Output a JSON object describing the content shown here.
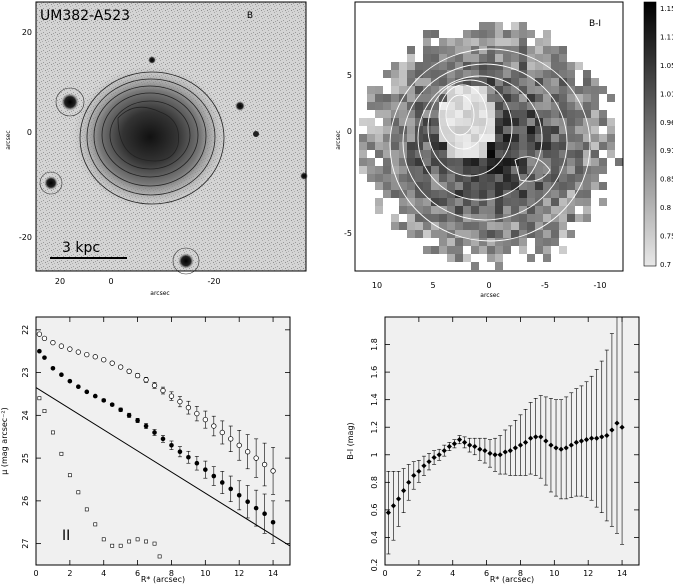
{
  "figure": {
    "panel_a": {
      "object_name": "UM382-A523",
      "band_label": "B",
      "scalebar_label": "3  kpc",
      "x_ticks": [
        "20",
        "0",
        "-20"
      ],
      "y_ticks": [
        "20",
        "0",
        "-20"
      ],
      "x_axis_label": "arcsec",
      "y_axis_label": "arcsec"
    },
    "panel_b": {
      "map_label": "B-I",
      "colorbar_ticks": [
        "1.15",
        "1.11",
        "1.05",
        "1.01",
        "0.96",
        "0.91",
        "0.85",
        "0.8",
        "0.75",
        "0.7"
      ],
      "x_ticks": [
        "10",
        "5",
        "0",
        "-5",
        "-10"
      ],
      "y_ticks": [
        "5",
        "0",
        "-5"
      ],
      "x_axis_label": "arcsec",
      "y_axis_label": "arcsec"
    },
    "panel_c_label": "II"
  },
  "chart_data": [
    {
      "type": "scatter",
      "xlabel": "R* (arcsec)",
      "ylabel": "μ (mag arcsec⁻²)",
      "xlim": [
        0,
        15
      ],
      "ylim": [
        27.5,
        21.7
      ],
      "y_inverted": true,
      "x_ticks": [
        "0",
        "2",
        "4",
        "6",
        "8",
        "10",
        "12",
        "14"
      ],
      "y_ticks": [
        "22",
        "23",
        "24",
        "25",
        "26",
        "27"
      ],
      "series": [
        {
          "marker": "open-circle",
          "x": [
            0.2,
            0.5,
            1,
            1.5,
            2,
            2.5,
            3,
            3.5,
            4,
            4.5,
            5,
            5.5,
            6,
            6.5,
            7,
            7.5,
            8,
            8.5,
            9,
            9.5,
            10,
            10.5,
            11,
            11.5,
            12,
            12.5,
            13,
            13.5,
            14
          ],
          "y": [
            22.1,
            22.2,
            22.3,
            22.38,
            22.45,
            22.52,
            22.58,
            22.63,
            22.7,
            22.78,
            22.87,
            22.97,
            23.07,
            23.17,
            23.3,
            23.42,
            23.55,
            23.68,
            23.82,
            23.96,
            24.1,
            24.25,
            24.4,
            24.55,
            24.7,
            24.85,
            25.0,
            25.15,
            25.3
          ],
          "err": [
            0.02,
            0.02,
            0.02,
            0.02,
            0.02,
            0.02,
            0.02,
            0.02,
            0.03,
            0.03,
            0.03,
            0.04,
            0.05,
            0.06,
            0.07,
            0.08,
            0.1,
            0.12,
            0.15,
            0.17,
            0.2,
            0.23,
            0.27,
            0.3,
            0.35,
            0.4,
            0.45,
            0.5,
            0.55
          ]
        },
        {
          "marker": "filled-circle",
          "x": [
            0.2,
            0.5,
            1,
            1.5,
            2,
            2.5,
            3,
            3.5,
            4,
            4.5,
            5,
            5.5,
            6,
            6.5,
            7,
            7.5,
            8,
            8.5,
            9,
            9.5,
            10,
            10.5,
            11,
            11.5,
            12,
            12.5,
            13,
            13.5,
            14
          ],
          "y": [
            22.5,
            22.65,
            22.9,
            23.05,
            23.2,
            23.33,
            23.45,
            23.55,
            23.65,
            23.75,
            23.87,
            24.0,
            24.12,
            24.25,
            24.4,
            24.55,
            24.7,
            24.85,
            24.98,
            25.12,
            25.27,
            25.42,
            25.57,
            25.72,
            25.87,
            26.02,
            26.17,
            26.3,
            26.5
          ],
          "err": [
            0.02,
            0.02,
            0.02,
            0.02,
            0.02,
            0.02,
            0.02,
            0.02,
            0.03,
            0.03,
            0.04,
            0.05,
            0.05,
            0.06,
            0.07,
            0.08,
            0.1,
            0.12,
            0.14,
            0.16,
            0.2,
            0.22,
            0.26,
            0.3,
            0.34,
            0.38,
            0.42,
            0.46,
            0.5
          ]
        },
        {
          "marker": "small-open-square",
          "x": [
            0.2,
            0.5,
            1,
            1.5,
            2,
            2.5,
            3,
            3.5,
            4,
            4.5,
            5,
            5.5,
            6,
            6.5,
            7,
            7.3
          ],
          "y": [
            23.6,
            23.9,
            24.4,
            24.9,
            25.4,
            25.8,
            26.2,
            26.55,
            26.9,
            27.05,
            27.05,
            26.95,
            26.9,
            26.95,
            27.0,
            27.3
          ]
        }
      ],
      "fit_line": {
        "x": [
          0,
          15
        ],
        "y_at_0": 23.35,
        "slope": 0.247
      }
    },
    {
      "type": "scatter",
      "xlabel": "R* (arcsec)",
      "ylabel": "B-I (mag)",
      "xlim": [
        0,
        15
      ],
      "ylim": [
        0.2,
        2.0
      ],
      "x_ticks": [
        "0",
        "2",
        "4",
        "6",
        "8",
        "10",
        "12",
        "14"
      ],
      "y_ticks": [
        "0.2",
        "0.4",
        "0.6",
        "0.8",
        "1",
        "1.2",
        "1.4",
        "1.6",
        "1.8"
      ],
      "series": [
        {
          "marker": "filled-diamond",
          "x": [
            0.2,
            0.5,
            0.8,
            1.1,
            1.4,
            1.7,
            2,
            2.3,
            2.6,
            2.9,
            3.2,
            3.5,
            3.8,
            4.1,
            4.4,
            4.7,
            5,
            5.3,
            5.6,
            5.9,
            6.2,
            6.5,
            6.8,
            7.1,
            7.4,
            7.7,
            8,
            8.3,
            8.6,
            8.9,
            9.2,
            9.5,
            9.8,
            10.1,
            10.4,
            10.7,
            11,
            11.3,
            11.6,
            11.9,
            12.2,
            12.5,
            12.8,
            13.1,
            13.4,
            13.7,
            14
          ],
          "y": [
            0.58,
            0.63,
            0.68,
            0.74,
            0.8,
            0.85,
            0.88,
            0.92,
            0.95,
            0.98,
            1.0,
            1.03,
            1.06,
            1.08,
            1.11,
            1.09,
            1.07,
            1.06,
            1.04,
            1.03,
            1.01,
            1.0,
            1.0,
            1.02,
            1.03,
            1.05,
            1.07,
            1.09,
            1.12,
            1.13,
            1.13,
            1.1,
            1.07,
            1.05,
            1.04,
            1.05,
            1.07,
            1.09,
            1.1,
            1.11,
            1.12,
            1.12,
            1.13,
            1.14,
            1.18,
            1.23,
            1.2
          ],
          "err": [
            0.3,
            0.25,
            0.2,
            0.16,
            0.13,
            0.1,
            0.08,
            0.07,
            0.06,
            0.05,
            0.04,
            0.04,
            0.03,
            0.03,
            0.03,
            0.04,
            0.05,
            0.06,
            0.08,
            0.09,
            0.1,
            0.12,
            0.14,
            0.16,
            0.18,
            0.2,
            0.22,
            0.24,
            0.26,
            0.28,
            0.3,
            0.32,
            0.34,
            0.35,
            0.36,
            0.37,
            0.38,
            0.39,
            0.4,
            0.42,
            0.45,
            0.5,
            0.55,
            0.62,
            0.7,
            0.8,
            0.85
          ]
        }
      ]
    }
  ]
}
